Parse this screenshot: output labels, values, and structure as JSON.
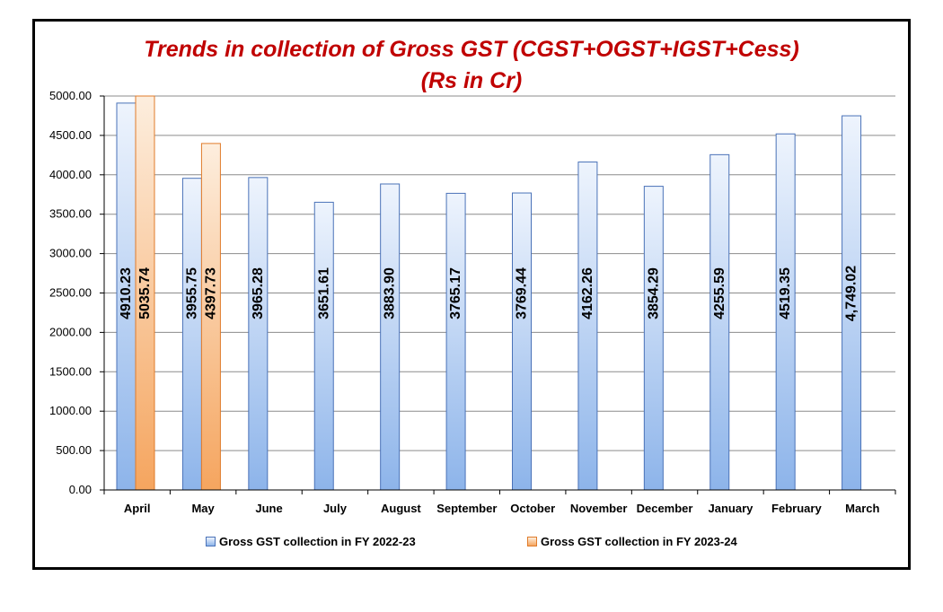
{
  "chart_data": {
    "type": "bar",
    "title": "Trends in collection of Gross GST (CGST+OGST+IGST+Cess)",
    "subtitle": "(Rs in Cr)",
    "categories": [
      "April",
      "May",
      "June",
      "July",
      "August",
      "September",
      "October",
      "November",
      "December",
      "January",
      "February",
      "March"
    ],
    "series": [
      {
        "name": "Gross GST collection in FY 2022-23",
        "values": [
          4910.23,
          3955.75,
          3965.28,
          3651.61,
          3883.9,
          3765.17,
          3769.44,
          4162.26,
          3854.29,
          4255.59,
          4519.35,
          4749.02
        ],
        "labels": [
          "4910.23",
          "3955.75",
          "3965.28",
          "3651.61",
          "3883.90",
          "3765.17",
          "3769.44",
          "4162.26",
          "3854.29",
          "4255.59",
          "4519.35",
          "4,749.02"
        ],
        "color_top": "#eef4fd",
        "color_bottom": "#8db4ea",
        "stroke": "#4a72b8"
      },
      {
        "name": "Gross GST collection in FY 2023-24",
        "values": [
          5035.74,
          4397.73,
          null,
          null,
          null,
          null,
          null,
          null,
          null,
          null,
          null,
          null
        ],
        "labels": [
          "5035.74",
          "4397.73",
          "",
          "",
          "",
          "",
          "",
          "",
          "",
          "",
          "",
          ""
        ],
        "color_top": "#fdeede",
        "color_bottom": "#f5a55f",
        "stroke": "#e07b2a"
      }
    ],
    "ylim": [
      0,
      5000
    ],
    "yticks": [
      0,
      500,
      1000,
      1500,
      2000,
      2500,
      3000,
      3500,
      4000,
      4500,
      5000
    ],
    "ytick_labels": [
      "0.00",
      "500.00",
      "1000.00",
      "1500.00",
      "2000.00",
      "2500.00",
      "3000.00",
      "3500.00",
      "4000.00",
      "4500.00",
      "5000.00"
    ],
    "grid": true,
    "legend_position": "bottom",
    "xlabel": "",
    "ylabel": ""
  }
}
